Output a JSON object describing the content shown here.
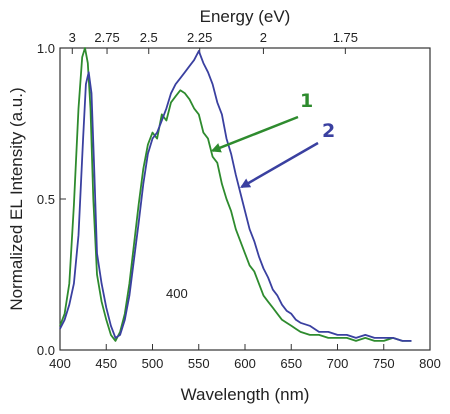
{
  "chart_data": {
    "type": "line",
    "xlabel": "Wavelength (nm)",
    "ylabel": "Normalized EL Intensity (a.u.)",
    "top_axis_label": "Energy (eV)",
    "xlim": [
      400,
      800
    ],
    "ylim": [
      0,
      1.0
    ],
    "x_ticks": [
      400,
      450,
      500,
      550,
      600,
      650,
      700,
      750,
      800
    ],
    "y_ticks": [
      0.0,
      0.5,
      1.0
    ],
    "y_tick_labels": [
      "0.0",
      "0.5",
      "1.0"
    ],
    "top_ticks": [
      {
        "label": "3",
        "energy": 3.0
      },
      {
        "label": "2.75",
        "energy": 2.75
      },
      {
        "label": "2.5",
        "energy": 2.5
      },
      {
        "label": "2.25",
        "energy": 2.25
      },
      {
        "label": "2",
        "energy": 2.0
      },
      {
        "label": "1.75",
        "energy": 1.75
      }
    ],
    "inner_label": "400",
    "grid": false,
    "series": [
      {
        "name": "1",
        "color": "#2e8b2e",
        "points": [
          [
            400,
            0.08
          ],
          [
            405,
            0.12
          ],
          [
            410,
            0.22
          ],
          [
            415,
            0.48
          ],
          [
            420,
            0.8
          ],
          [
            424,
            0.97
          ],
          [
            427,
            1.0
          ],
          [
            430,
            0.95
          ],
          [
            433,
            0.8
          ],
          [
            436,
            0.5
          ],
          [
            440,
            0.25
          ],
          [
            445,
            0.16
          ],
          [
            450,
            0.1
          ],
          [
            455,
            0.05
          ],
          [
            460,
            0.03
          ],
          [
            465,
            0.06
          ],
          [
            470,
            0.12
          ],
          [
            475,
            0.22
          ],
          [
            480,
            0.35
          ],
          [
            485,
            0.48
          ],
          [
            490,
            0.6
          ],
          [
            495,
            0.68
          ],
          [
            500,
            0.72
          ],
          [
            505,
            0.7
          ],
          [
            510,
            0.78
          ],
          [
            515,
            0.76
          ],
          [
            520,
            0.82
          ],
          [
            525,
            0.84
          ],
          [
            530,
            0.86
          ],
          [
            535,
            0.85
          ],
          [
            540,
            0.83
          ],
          [
            545,
            0.8
          ],
          [
            550,
            0.78
          ],
          [
            555,
            0.72
          ],
          [
            560,
            0.7
          ],
          [
            565,
            0.64
          ],
          [
            570,
            0.62
          ],
          [
            575,
            0.55
          ],
          [
            580,
            0.5
          ],
          [
            585,
            0.46
          ],
          [
            590,
            0.4
          ],
          [
            595,
            0.36
          ],
          [
            600,
            0.32
          ],
          [
            605,
            0.28
          ],
          [
            610,
            0.26
          ],
          [
            615,
            0.22
          ],
          [
            620,
            0.18
          ],
          [
            625,
            0.16
          ],
          [
            630,
            0.14
          ],
          [
            635,
            0.12
          ],
          [
            640,
            0.1
          ],
          [
            645,
            0.09
          ],
          [
            650,
            0.08
          ],
          [
            655,
            0.07
          ],
          [
            660,
            0.06
          ],
          [
            670,
            0.05
          ],
          [
            680,
            0.05
          ],
          [
            690,
            0.04
          ],
          [
            700,
            0.04
          ],
          [
            710,
            0.04
          ],
          [
            720,
            0.03
          ],
          [
            730,
            0.04
          ],
          [
            740,
            0.03
          ],
          [
            750,
            0.03
          ],
          [
            760,
            0.04
          ],
          [
            770,
            0.03
          ],
          [
            780,
            0.03
          ]
        ]
      },
      {
        "name": "2",
        "color": "#3a40a0",
        "points": [
          [
            400,
            0.07
          ],
          [
            405,
            0.1
          ],
          [
            410,
            0.15
          ],
          [
            415,
            0.22
          ],
          [
            420,
            0.38
          ],
          [
            425,
            0.7
          ],
          [
            428,
            0.88
          ],
          [
            431,
            0.92
          ],
          [
            434,
            0.85
          ],
          [
            437,
            0.6
          ],
          [
            440,
            0.32
          ],
          [
            445,
            0.22
          ],
          [
            450,
            0.14
          ],
          [
            455,
            0.08
          ],
          [
            460,
            0.04
          ],
          [
            465,
            0.05
          ],
          [
            470,
            0.1
          ],
          [
            475,
            0.18
          ],
          [
            480,
            0.3
          ],
          [
            485,
            0.42
          ],
          [
            490,
            0.55
          ],
          [
            495,
            0.65
          ],
          [
            500,
            0.7
          ],
          [
            505,
            0.72
          ],
          [
            510,
            0.76
          ],
          [
            515,
            0.8
          ],
          [
            520,
            0.85
          ],
          [
            525,
            0.88
          ],
          [
            530,
            0.9
          ],
          [
            535,
            0.92
          ],
          [
            540,
            0.94
          ],
          [
            545,
            0.96
          ],
          [
            550,
            0.99
          ],
          [
            555,
            0.95
          ],
          [
            560,
            0.92
          ],
          [
            565,
            0.88
          ],
          [
            570,
            0.82
          ],
          [
            575,
            0.78
          ],
          [
            580,
            0.7
          ],
          [
            585,
            0.65
          ],
          [
            590,
            0.58
          ],
          [
            595,
            0.52
          ],
          [
            600,
            0.46
          ],
          [
            605,
            0.4
          ],
          [
            610,
            0.36
          ],
          [
            615,
            0.31
          ],
          [
            620,
            0.27
          ],
          [
            625,
            0.24
          ],
          [
            630,
            0.2
          ],
          [
            635,
            0.18
          ],
          [
            640,
            0.15
          ],
          [
            645,
            0.13
          ],
          [
            650,
            0.12
          ],
          [
            655,
            0.1
          ],
          [
            660,
            0.09
          ],
          [
            670,
            0.08
          ],
          [
            680,
            0.06
          ],
          [
            690,
            0.06
          ],
          [
            700,
            0.05
          ],
          [
            710,
            0.05
          ],
          [
            720,
            0.04
          ],
          [
            730,
            0.05
          ],
          [
            740,
            0.04
          ],
          [
            750,
            0.04
          ],
          [
            760,
            0.04
          ],
          [
            770,
            0.03
          ],
          [
            780,
            0.03
          ]
        ]
      }
    ],
    "annotations": [
      {
        "label": "1",
        "color": "#2e8b2e",
        "points_to": [
          565,
          0.66
        ]
      },
      {
        "label": "2",
        "color": "#3a40a0",
        "points_to": [
          590,
          0.56
        ]
      }
    ]
  }
}
